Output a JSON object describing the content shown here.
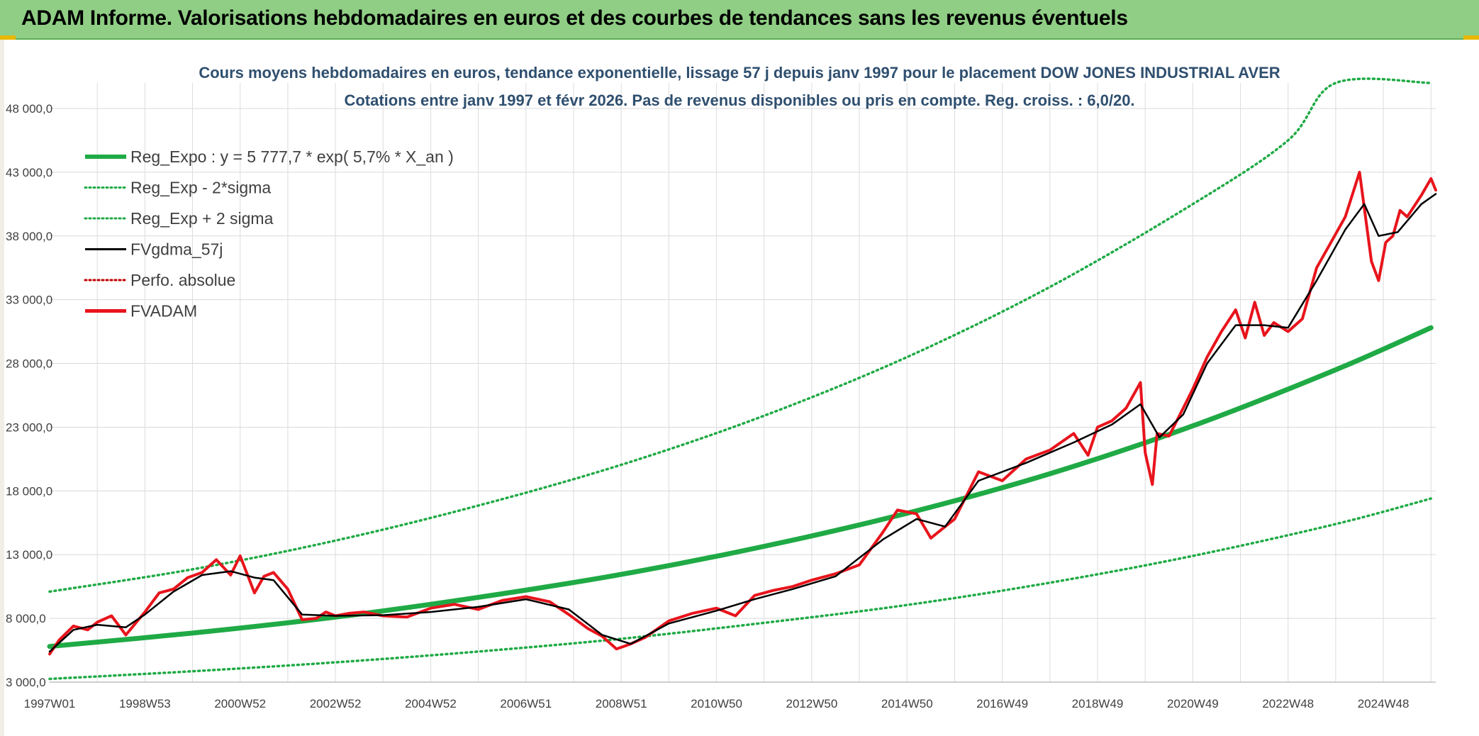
{
  "header": {
    "title": "ADAM Informe. Valorisations hebdomadaires en euros et des courbes de tendances sans les revenus éventuels"
  },
  "chart_data": {
    "type": "line",
    "title": "Cours moyens hebdomadaires en euros, tendance exponentielle, lissage 57 j depuis janv 1997 pour le placement DOW JONES INDUSTRIAL AVER",
    "subtitle": "Cotations entre janv 1997 et févr 2026. Pas de revenus disponibles ou pris en compte. Reg. croiss. : 6,0/20.",
    "xlabel": "",
    "ylabel": "",
    "ylim": [
      3000,
      50000
    ],
    "xlim": [
      1997.0,
      2026.1
    ],
    "yticks": [
      3000,
      8000,
      13000,
      18000,
      23000,
      28000,
      33000,
      38000,
      43000,
      48000
    ],
    "ytick_labels": [
      "3 000,0",
      "8 000,0",
      "13 000,0",
      "18 000,0",
      "23 000,0",
      "28 000,0",
      "33 000,0",
      "38 000,0",
      "43 000,0",
      "48 000,0"
    ],
    "xtick_labels": [
      "1997W01",
      "1998W53",
      "2000W52",
      "2002W52",
      "2004W52",
      "2006W51",
      "2008W51",
      "2010W50",
      "2012W50",
      "2014W50",
      "2016W49",
      "2018W49",
      "2020W49",
      "2022W48",
      "2024W48"
    ],
    "xtick_positions": [
      1997.0,
      1999.0,
      2001.0,
      2003.0,
      2005.0,
      2007.0,
      2009.0,
      2011.0,
      2013.0,
      2015.0,
      2017.0,
      2019.0,
      2021.0,
      2023.0,
      2025.0
    ],
    "grid": true,
    "legend_position": "top-left",
    "colors": {
      "green": "#1faa45",
      "black": "#000000",
      "red": "#e8141c",
      "dark_red": "#c00000"
    },
    "legend": [
      {
        "label": "Reg_Expo : y = 5 777,7 * exp( 5,7% *  X_an )",
        "color": "#1faa45",
        "style": "solid-thick"
      },
      {
        "label": "Reg_Exp - 2*sigma",
        "color": "#1faa45",
        "style": "dotted"
      },
      {
        "label": "Reg_Exp + 2 sigma",
        "color": "#1faa45",
        "style": "dotted"
      },
      {
        "label": "FVgdma_57j",
        "color": "#000000",
        "style": "solid"
      },
      {
        "label": "Perfo. absolue",
        "color": "#c00000",
        "style": "dotted"
      },
      {
        "label": "FVADAM",
        "color": "#e8141c",
        "style": "solid-thick"
      }
    ],
    "series": [
      {
        "name": "Reg_Expo : y = 5 777,7 * exp( 5,7% *  X_an )",
        "x": [
          1997.0,
          2000.0,
          2003.0,
          2006.0,
          2009.0,
          2012.0,
          2015.0,
          2018.0,
          2021.0,
          2024.0,
          2026.0
        ],
        "values": [
          5800,
          6850,
          8100,
          9650,
          11450,
          13650,
          16250,
          19350,
          23100,
          27500,
          30800
        ]
      },
      {
        "name": "Reg_Exp - 2*sigma",
        "x": [
          1997.0,
          2000.0,
          2003.0,
          2006.0,
          2009.0,
          2012.0,
          2015.0,
          2018.0,
          2021.0,
          2024.0,
          2026.0
        ],
        "values": [
          3250,
          3850,
          4550,
          5400,
          6400,
          7650,
          9050,
          10800,
          12900,
          15400,
          17400
        ]
      },
      {
        "name": "Reg_Exp + 2 sigma",
        "x": [
          1997.0,
          2000.0,
          2003.0,
          2006.0,
          2009.0,
          2012.0,
          2015.0,
          2018.0,
          2021.0,
          2023.0,
          2024.0,
          2026.0
        ],
        "values": [
          10100,
          11850,
          14100,
          16850,
          20050,
          23900,
          28500,
          34000,
          40500,
          45500,
          50000,
          50000
        ]
      },
      {
        "name": "FVADAM",
        "x": [
          1997.0,
          1997.2,
          1997.5,
          1997.8,
          1998.0,
          1998.3,
          1998.6,
          1998.8,
          1999.0,
          1999.3,
          1999.6,
          1999.9,
          2000.2,
          2000.5,
          2000.8,
          2001.0,
          2001.3,
          2001.5,
          2001.7,
          2002.0,
          2002.3,
          2002.6,
          2002.8,
          2003.0,
          2003.3,
          2003.6,
          2004.0,
          2004.5,
          2005.0,
          2005.5,
          2006.0,
          2006.5,
          2007.0,
          2007.5,
          2007.9,
          2008.3,
          2008.6,
          2008.9,
          2009.2,
          2009.5,
          2010.0,
          2010.5,
          2011.0,
          2011.4,
          2011.8,
          2012.2,
          2012.6,
          2013.0,
          2013.5,
          2014.0,
          2014.5,
          2014.8,
          2015.2,
          2015.5,
          2015.8,
          2016.0,
          2016.5,
          2017.0,
          2017.5,
          2018.0,
          2018.5,
          2018.8,
          2019.0,
          2019.3,
          2019.6,
          2019.9,
          2020.0,
          2020.15,
          2020.25,
          2020.5,
          2020.8,
          2021.0,
          2021.3,
          2021.6,
          2021.9,
          2022.1,
          2022.3,
          2022.5,
          2022.7,
          2023.0,
          2023.3,
          2023.6,
          2023.9,
          2024.2,
          2024.5,
          2024.75,
          2024.9,
          2025.05,
          2025.2,
          2025.35,
          2025.5,
          2025.8,
          2026.0,
          2026.1
        ],
        "values": [
          5200,
          6300,
          7400,
          7100,
          7700,
          8200,
          6700,
          7600,
          8500,
          10000,
          10300,
          11200,
          11600,
          12600,
          11400,
          12900,
          10000,
          11300,
          11600,
          10300,
          7900,
          8000,
          8500,
          8200,
          8400,
          8500,
          8200,
          8100,
          8800,
          9100,
          8700,
          9400,
          9700,
          9300,
          8300,
          7200,
          6600,
          5600,
          6000,
          6500,
          7800,
          8400,
          8800,
          8200,
          9800,
          10200,
          10500,
          11000,
          11500,
          12200,
          14800,
          16500,
          16200,
          14300,
          15200,
          15800,
          19500,
          18800,
          20500,
          21200,
          22500,
          20800,
          23000,
          23500,
          24500,
          26500,
          21000,
          18500,
          22500,
          22300,
          24500,
          26000,
          28500,
          30500,
          32200,
          30000,
          32800,
          30200,
          31200,
          30500,
          31500,
          35500,
          37500,
          39500,
          43000,
          36000,
          34500,
          37500,
          38000,
          40000,
          39500,
          41200,
          42500,
          41600
        ]
      },
      {
        "name": "FVgdma_57j",
        "x": [
          1997.0,
          1997.5,
          1998.0,
          1998.6,
          1999.0,
          1999.6,
          2000.2,
          2000.8,
          2001.3,
          2001.7,
          2002.3,
          2003.0,
          2004.0,
          2005.0,
          2006.0,
          2007.0,
          2007.9,
          2008.6,
          2009.2,
          2010.0,
          2011.0,
          2011.8,
          2012.6,
          2013.5,
          2014.5,
          2015.2,
          2015.8,
          2016.5,
          2017.5,
          2018.5,
          2019.3,
          2019.9,
          2020.3,
          2020.8,
          2021.3,
          2021.9,
          2022.5,
          2023.0,
          2023.6,
          2024.2,
          2024.6,
          2024.9,
          2025.3,
          2025.8,
          2026.1
        ],
        "values": [
          5400,
          7100,
          7500,
          7300,
          8300,
          10100,
          11400,
          11700,
          11200,
          11000,
          8300,
          8200,
          8250,
          8500,
          8900,
          9500,
          8700,
          6700,
          6000,
          7600,
          8600,
          9500,
          10300,
          11300,
          14200,
          15800,
          15200,
          18800,
          20200,
          21800,
          23200,
          24800,
          22200,
          24000,
          28000,
          31000,
          31000,
          30800,
          34500,
          38500,
          40500,
          38000,
          38300,
          40500,
          41300
        ]
      }
    ]
  }
}
